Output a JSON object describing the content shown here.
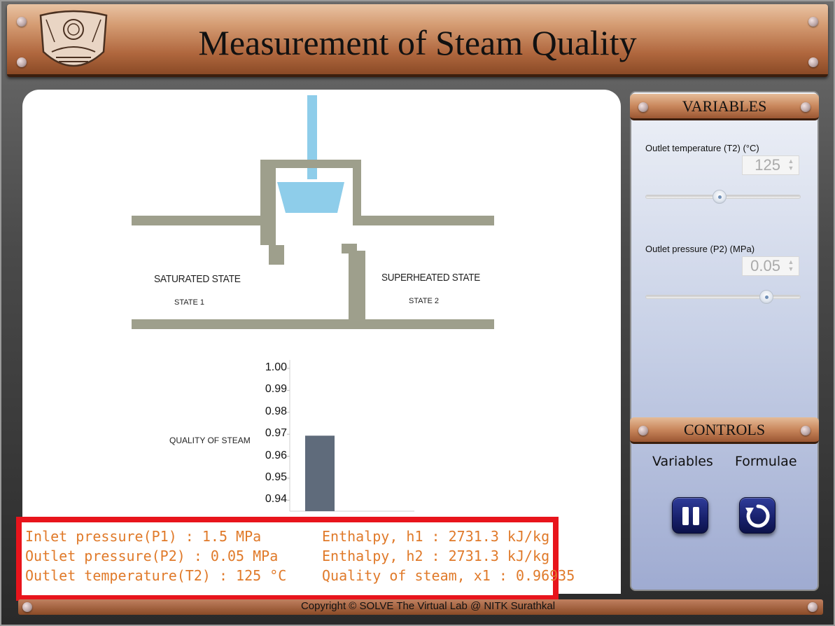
{
  "app": {
    "title": "Measurement of Steam Quality",
    "copyright": "Copyright © SOLVE The Virtual Lab @ NITK Surathkal"
  },
  "diagram": {
    "saturated_label": "SATURATED STATE",
    "saturated_sub": "STATE 1",
    "superheated_label": "SUPERHEATED STATE",
    "superheated_sub": "STATE 2",
    "colors": {
      "pipe": "#9e9f8c",
      "water": "#8ecdea",
      "bar": "#5f6b7b"
    }
  },
  "chart_data": {
    "type": "bar",
    "ylabel": "QUALITY OF STEAM",
    "ylim": [
      0.935,
      1.0
    ],
    "y_ticks": [
      "1.00",
      "0.99",
      "0.98",
      "0.97",
      "0.96",
      "0.95",
      "0.94"
    ],
    "categories": [
      ""
    ],
    "values": [
      0.96935
    ]
  },
  "variables": {
    "header": "VARIABLES",
    "t2": {
      "label": "Outlet temperature (T2) (°C)",
      "value": "125",
      "min": 100,
      "max": 200,
      "level": 0.47
    },
    "p2": {
      "label": "Outlet pressure (P2) (MPa)",
      "value": "0.05",
      "level": 0.8
    }
  },
  "controls": {
    "header": "CONTROLS",
    "variables_link": "Variables",
    "formulae_link": "Formulae",
    "pause_icon": "pause-icon",
    "reset_icon": "reset-icon"
  },
  "results": {
    "p1": "Inlet pressure(P1) : 1.5 MPa",
    "p2": "Outlet pressure(P2) : 0.05 MPa",
    "t2": "Outlet temperature(T2) : 125 °C",
    "h1": "Enthalpy, h1 : 2731.3 kJ/kg",
    "h2": "Enthalpy, h2 : 2731.3 kJ/kg",
    "x1": "Quality of steam, x1 : 0.96935"
  }
}
